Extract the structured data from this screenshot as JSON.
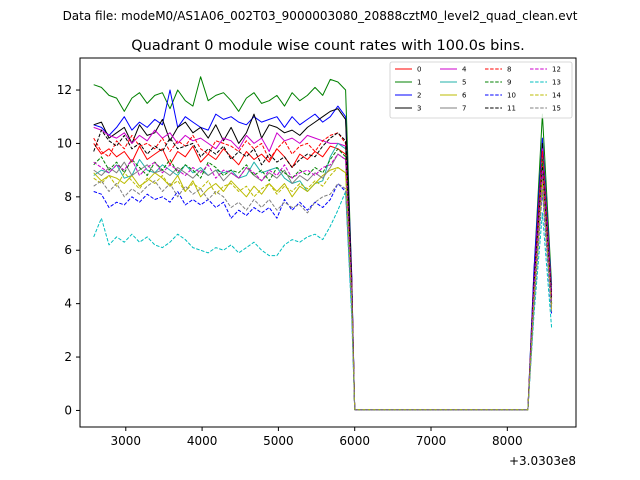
{
  "figure": {
    "suptitle": "Data file: modeM0/AS1A06_002T03_9000003080_20888cztM0_level2_quad_clean.evt",
    "offset_label": "+3.0303e8"
  },
  "chart_data": {
    "type": "line",
    "title": "Quadrant 0 module wise count rates with 100.0s bins.",
    "xlabel": "",
    "ylabel": "",
    "xlim": [
      2400,
      8900
    ],
    "ylim": [
      -0.62,
      13.2
    ],
    "x_offset": 303030000,
    "x_ticks": [
      3000,
      4000,
      5000,
      6000,
      7000,
      8000
    ],
    "x_tick_labels": [
      "3000",
      "4000",
      "5000",
      "6000",
      "7000",
      "8000"
    ],
    "y_ticks": [
      0,
      2,
      4,
      6,
      8,
      10,
      12
    ],
    "y_tick_labels": [
      "0",
      "2",
      "4",
      "6",
      "8",
      "10",
      "12"
    ],
    "grid": false,
    "legend_position": "top-right",
    "legend_columns": 4,
    "x": [
      2580,
      2680,
      2780,
      2880,
      2980,
      3080,
      3180,
      3280,
      3380,
      3480,
      3580,
      3680,
      3780,
      3880,
      3980,
      4080,
      4180,
      4280,
      4380,
      4480,
      4580,
      4680,
      4780,
      4880,
      4980,
      5080,
      5180,
      5280,
      5380,
      5480,
      5580,
      5680,
      5780,
      5880,
      5960,
      6000,
      8270,
      8350,
      8460,
      8580
    ],
    "series": [
      {
        "name": "0",
        "color": "#ff0000",
        "dash": "solid",
        "values": [
          10.0,
          9.6,
          9.8,
          9.5,
          9.7,
          9.3,
          9.9,
          9.4,
          9.6,
          9.8,
          9.2,
          9.7,
          9.5,
          9.9,
          9.3,
          9.6,
          9.4,
          9.8,
          9.5,
          9.2,
          9.7,
          9.4,
          9.6,
          9.3,
          9.8,
          9.5,
          9.1,
          9.6,
          9.4,
          9.7,
          9.5,
          9.9,
          9.8,
          9.6,
          4.5,
          0.03,
          0.03,
          4.3,
          9.3,
          4.2
        ]
      },
      {
        "name": "1",
        "color": "#008000",
        "dash": "solid",
        "values": [
          12.2,
          12.1,
          11.8,
          11.7,
          11.2,
          11.7,
          11.9,
          11.5,
          11.8,
          11.9,
          11.3,
          12.0,
          11.6,
          11.4,
          12.5,
          11.6,
          11.8,
          11.9,
          11.6,
          11.2,
          11.7,
          11.9,
          11.5,
          11.6,
          11.8,
          11.4,
          11.9,
          11.6,
          11.8,
          12.1,
          11.8,
          12.4,
          12.3,
          12.0,
          5.0,
          0.03,
          0.03,
          5.2,
          11.1,
          4.7
        ]
      },
      {
        "name": "2",
        "color": "#0000ff",
        "dash": "solid",
        "values": [
          10.7,
          10.6,
          10.3,
          10.6,
          11.0,
          10.5,
          10.8,
          10.6,
          10.9,
          10.7,
          12.0,
          10.6,
          11.0,
          10.8,
          10.6,
          10.5,
          11.1,
          10.9,
          11.0,
          10.8,
          10.7,
          11.0,
          10.8,
          10.9,
          11.0,
          10.6,
          11.0,
          10.7,
          10.9,
          11.1,
          10.8,
          11.0,
          11.4,
          11.0,
          5.1,
          0.03,
          0.03,
          5.3,
          10.2,
          4.5
        ]
      },
      {
        "name": "3",
        "color": "#000000",
        "dash": "solid",
        "values": [
          10.7,
          10.8,
          10.2,
          10.4,
          10.6,
          10.0,
          10.7,
          10.3,
          10.4,
          10.9,
          10.1,
          10.6,
          10.8,
          10.4,
          10.6,
          10.2,
          10.7,
          10.1,
          10.6,
          10.0,
          10.4,
          11.1,
          10.2,
          10.7,
          10.6,
          10.4,
          10.5,
          10.3,
          10.6,
          10.8,
          11.0,
          11.2,
          11.3,
          10.9,
          4.9,
          0.03,
          0.03,
          4.7,
          10.0,
          4.0
        ]
      },
      {
        "name": "4",
        "color": "#cc00cc",
        "dash": "solid",
        "values": [
          10.6,
          10.5,
          10.3,
          10.2,
          10.4,
          10.0,
          10.3,
          10.1,
          10.5,
          10.2,
          10.4,
          10.0,
          10.3,
          10.1,
          10.2,
          10.0,
          9.8,
          10.2,
          10.1,
          9.8,
          10.3,
          10.0,
          10.2,
          9.7,
          10.4,
          10.1,
          10.2,
          10.0,
          10.3,
          10.2,
          10.1,
          10.0,
          10.0,
          9.9,
          4.8,
          0.03,
          0.03,
          4.8,
          9.8,
          4.3
        ]
      },
      {
        "name": "5",
        "color": "#20b2aa",
        "dash": "solid",
        "values": [
          8.8,
          9.0,
          8.9,
          9.2,
          8.7,
          8.8,
          9.4,
          9.0,
          8.9,
          9.2,
          9.0,
          8.8,
          9.2,
          8.9,
          9.1,
          8.8,
          9.0,
          8.9,
          9.0,
          8.7,
          8.8,
          9.3,
          8.9,
          9.0,
          9.1,
          8.7,
          8.5,
          8.6,
          8.2,
          8.5,
          8.6,
          9.5,
          10.0,
          9.8,
          4.3,
          0.03,
          0.03,
          4.2,
          9.5,
          4.0
        ]
      },
      {
        "name": "6",
        "color": "#bbbb00",
        "dash": "solid",
        "values": [
          8.9,
          8.6,
          8.8,
          8.7,
          8.5,
          8.8,
          8.4,
          8.6,
          8.9,
          8.7,
          8.4,
          8.8,
          8.2,
          8.6,
          8.0,
          8.3,
          8.5,
          8.2,
          8.6,
          8.3,
          8.0,
          8.4,
          8.1,
          8.5,
          8.2,
          8.5,
          8.0,
          8.4,
          8.2,
          8.5,
          8.8,
          9.0,
          9.1,
          8.9,
          4.2,
          0.03,
          0.03,
          4.3,
          8.8,
          3.9
        ]
      },
      {
        "name": "7",
        "color": "#808080",
        "dash": "solid",
        "values": [
          9.0,
          8.8,
          9.1,
          8.9,
          9.3,
          8.8,
          9.0,
          9.2,
          8.9,
          9.0,
          8.8,
          9.1,
          8.9,
          8.7,
          9.0,
          8.8,
          9.0,
          8.6,
          8.9,
          8.7,
          9.1,
          8.8,
          8.6,
          8.9,
          8.7,
          9.0,
          8.5,
          8.8,
          8.6,
          8.9,
          8.7,
          9.1,
          9.6,
          9.4,
          4.4,
          0.03,
          0.03,
          4.1,
          9.4,
          4.1
        ]
      },
      {
        "name": "8",
        "color": "#ff0000",
        "dash": "dashed",
        "values": [
          10.2,
          9.7,
          9.5,
          10.1,
          9.8,
          10.3,
          9.9,
          10.0,
          9.8,
          10.2,
          9.7,
          10.1,
          9.9,
          10.3,
          9.8,
          9.6,
          10.1,
          10.0,
          9.9,
          9.7,
          10.1,
          9.8,
          10.0,
          9.4,
          9.8,
          10.1,
          9.6,
          9.9,
          10.0,
          9.7,
          10.1,
          10.3,
          10.4,
          10.0,
          4.7,
          0.03,
          0.03,
          4.8,
          9.7,
          4.3
        ]
      },
      {
        "name": "9",
        "color": "#008000",
        "dash": "dashed",
        "values": [
          9.2,
          9.5,
          9.0,
          9.3,
          8.9,
          9.4,
          9.1,
          8.8,
          9.3,
          9.0,
          9.4,
          8.9,
          9.2,
          9.0,
          8.7,
          9.3,
          9.1,
          8.8,
          9.0,
          8.9,
          9.2,
          8.8,
          9.0,
          8.6,
          9.1,
          8.9,
          8.7,
          9.0,
          8.8,
          9.1,
          8.9,
          9.4,
          9.8,
          9.5,
          4.5,
          0.03,
          0.03,
          4.4,
          9.4,
          4.0
        ]
      },
      {
        "name": "10",
        "color": "#0000ff",
        "dash": "dashed",
        "values": [
          8.2,
          8.1,
          7.6,
          7.8,
          7.7,
          8.0,
          7.8,
          8.1,
          7.9,
          8.0,
          7.8,
          8.2,
          7.7,
          7.9,
          7.7,
          7.9,
          7.6,
          7.8,
          7.2,
          7.5,
          7.3,
          7.6,
          7.4,
          7.6,
          7.2,
          7.9,
          7.5,
          7.8,
          7.5,
          7.8,
          7.6,
          7.9,
          8.5,
          8.2,
          3.8,
          0.03,
          0.03,
          4.0,
          8.2,
          3.6
        ]
      },
      {
        "name": "11",
        "color": "#000000",
        "dash": "dashed",
        "values": [
          9.7,
          10.5,
          10.1,
          9.9,
          10.3,
          9.8,
          10.0,
          9.6,
          9.9,
          9.7,
          10.2,
          9.8,
          9.9,
          10.0,
          9.5,
          9.8,
          9.6,
          9.9,
          9.4,
          9.7,
          9.5,
          9.8,
          9.2,
          9.6,
          9.3,
          9.5,
          9.1,
          9.4,
          9.6,
          9.5,
          9.9,
          10.2,
          10.4,
          10.1,
          4.7,
          0.03,
          0.03,
          4.8,
          9.1,
          4.2
        ]
      },
      {
        "name": "12",
        "color": "#cc00cc",
        "dash": "dashed",
        "values": [
          9.3,
          9.1,
          8.9,
          9.2,
          9.0,
          9.4,
          8.8,
          9.1,
          9.3,
          8.9,
          9.2,
          9.0,
          8.8,
          9.1,
          8.9,
          9.2,
          8.7,
          9.0,
          8.9,
          8.7,
          9.1,
          8.9,
          8.6,
          9.0,
          8.8,
          9.2,
          8.7,
          8.9,
          9.0,
          8.8,
          9.1,
          9.2,
          9.6,
          9.4,
          4.4,
          0.03,
          0.03,
          4.5,
          9.0,
          4.0
        ]
      },
      {
        "name": "13",
        "color": "#00bfbf",
        "dash": "dashed",
        "values": [
          6.5,
          7.2,
          6.2,
          6.5,
          6.3,
          6.6,
          6.3,
          6.5,
          6.2,
          6.1,
          6.3,
          6.6,
          6.4,
          6.1,
          6.0,
          5.9,
          6.1,
          6.0,
          6.2,
          5.9,
          6.1,
          6.3,
          6.0,
          5.8,
          5.8,
          6.2,
          6.4,
          6.3,
          6.5,
          6.6,
          6.4,
          6.9,
          7.5,
          8.2,
          3.5,
          0.03,
          0.03,
          3.6,
          7.4,
          3.1
        ]
      },
      {
        "name": "14",
        "color": "#bbbb00",
        "dash": "dashed",
        "values": [
          8.7,
          8.5,
          8.8,
          8.4,
          8.9,
          8.6,
          8.3,
          8.7,
          8.5,
          8.8,
          8.4,
          8.6,
          8.2,
          8.5,
          8.3,
          8.6,
          8.1,
          8.4,
          8.5,
          8.2,
          8.4,
          8.0,
          8.3,
          8.5,
          8.1,
          8.4,
          8.2,
          8.5,
          8.3,
          8.6,
          8.4,
          8.8,
          9.1,
          8.9,
          4.1,
          0.03,
          0.03,
          4.2,
          8.5,
          3.8
        ]
      },
      {
        "name": "15",
        "color": "#808080",
        "dash": "dashed",
        "values": [
          8.4,
          8.6,
          8.2,
          8.5,
          8.0,
          8.3,
          8.1,
          8.4,
          8.6,
          8.2,
          8.5,
          8.0,
          8.4,
          8.1,
          8.3,
          7.9,
          8.2,
          8.0,
          7.6,
          7.8,
          7.5,
          7.9,
          7.6,
          7.9,
          7.5,
          7.8,
          7.6,
          7.7,
          7.4,
          7.8,
          8.0,
          8.1,
          8.5,
          8.3,
          4.0,
          0.03,
          0.03,
          3.9,
          8.3,
          3.7
        ]
      }
    ]
  }
}
